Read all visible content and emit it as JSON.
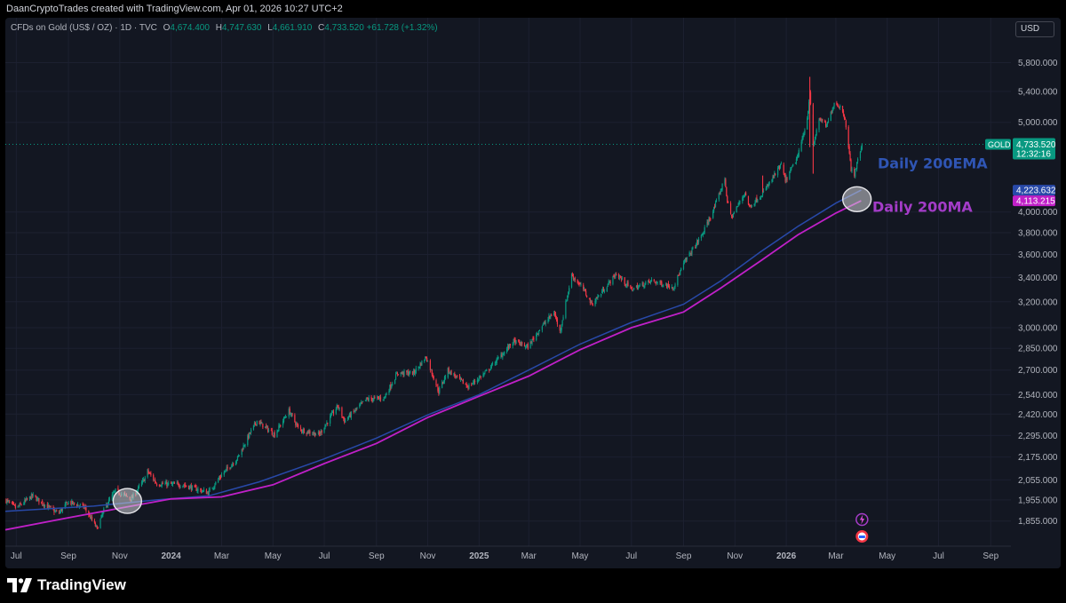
{
  "header": {
    "attribution": "DaanCryptoTrades created with TradingView.com, Apr 01, 2026 10:27 UTC+2"
  },
  "symbol": {
    "name": "CFDs on Gold (US$ / OZ) · 1D · TVC",
    "open_label": "O",
    "open": "4,674.400",
    "high_label": "H",
    "high": "4,747.630",
    "low_label": "L",
    "low": "4,661.910",
    "close_label": "C",
    "close": "4,733.520",
    "change": "+61.728 (+1.32%)"
  },
  "currency_button": "USD",
  "footer": {
    "brand": "TradingView"
  },
  "colors": {
    "background": "#131722",
    "up": "#089981",
    "down": "#f23645",
    "ema": "#2849a8",
    "ma": "#c020c8",
    "annotation_ema": "#2f55b4",
    "annotation_ma": "#a43cc8"
  },
  "chart_data": {
    "type": "candlestick",
    "interval": "1D",
    "y_scale": "log",
    "ylim": [
      1760,
      5800
    ],
    "x_range": [
      "2023-06-18",
      "2026-09-25"
    ],
    "y_ticks": [
      {
        "value": 5800,
        "label": "5,800.000"
      },
      {
        "value": 5400,
        "label": "5,400.000"
      },
      {
        "value": 5000,
        "label": "5,000.000"
      },
      {
        "value": 4000,
        "label": "4,000.000"
      },
      {
        "value": 3800,
        "label": "3,800.000"
      },
      {
        "value": 3600,
        "label": "3,600.000"
      },
      {
        "value": 3400,
        "label": "3,400.000"
      },
      {
        "value": 3200,
        "label": "3,200.000"
      },
      {
        "value": 3000,
        "label": "3,000.000"
      },
      {
        "value": 2850,
        "label": "2,850.000"
      },
      {
        "value": 2700,
        "label": "2,700.000"
      },
      {
        "value": 2540,
        "label": "2,540.000"
      },
      {
        "value": 2420,
        "label": "2,420.000"
      },
      {
        "value": 2295,
        "label": "2,295.000"
      },
      {
        "value": 2175,
        "label": "2,175.000"
      },
      {
        "value": 2055,
        "label": "2,055.000"
      },
      {
        "value": 1955,
        "label": "1,955.000"
      },
      {
        "value": 1855,
        "label": "1,855.000"
      }
    ],
    "x_ticks": [
      {
        "date": "2023-07-01",
        "label": "Jul",
        "bold": false
      },
      {
        "date": "2023-09-01",
        "label": "Sep",
        "bold": false
      },
      {
        "date": "2023-11-01",
        "label": "Nov",
        "bold": false
      },
      {
        "date": "2024-01-01",
        "label": "2024",
        "bold": true
      },
      {
        "date": "2024-03-01",
        "label": "Mar",
        "bold": false
      },
      {
        "date": "2024-05-01",
        "label": "May",
        "bold": false
      },
      {
        "date": "2024-07-01",
        "label": "Jul",
        "bold": false
      },
      {
        "date": "2024-09-01",
        "label": "Sep",
        "bold": false
      },
      {
        "date": "2024-11-01",
        "label": "Nov",
        "bold": false
      },
      {
        "date": "2025-01-01",
        "label": "2025",
        "bold": true
      },
      {
        "date": "2025-03-01",
        "label": "Mar",
        "bold": false
      },
      {
        "date": "2025-05-01",
        "label": "May",
        "bold": false
      },
      {
        "date": "2025-07-01",
        "label": "Jul",
        "bold": false
      },
      {
        "date": "2025-09-01",
        "label": "Sep",
        "bold": false
      },
      {
        "date": "2025-11-01",
        "label": "Nov",
        "bold": false
      },
      {
        "date": "2026-01-01",
        "label": "2026",
        "bold": true
      },
      {
        "date": "2026-03-01",
        "label": "Mar",
        "bold": false
      },
      {
        "date": "2026-05-01",
        "label": "May",
        "bold": false
      },
      {
        "date": "2026-07-01",
        "label": "Jul",
        "bold": false
      },
      {
        "date": "2026-09-01",
        "label": "Sep",
        "bold": false
      }
    ],
    "price_path": [
      [
        "2023-06-18",
        1955
      ],
      [
        "2023-07-01",
        1915
      ],
      [
        "2023-07-20",
        1975
      ],
      [
        "2023-08-10",
        1915
      ],
      [
        "2023-08-20",
        1890
      ],
      [
        "2023-09-01",
        1945
      ],
      [
        "2023-09-20",
        1920
      ],
      [
        "2023-10-05",
        1820
      ],
      [
        "2023-10-15",
        1925
      ],
      [
        "2023-10-27",
        2000
      ],
      [
        "2023-11-15",
        1960
      ],
      [
        "2023-12-01",
        2065
      ],
      [
        "2023-12-04",
        2100
      ],
      [
        "2023-12-15",
        2035
      ],
      [
        "2024-01-15",
        2030
      ],
      [
        "2024-02-14",
        1990
      ],
      [
        "2024-03-01",
        2080
      ],
      [
        "2024-03-20",
        2170
      ],
      [
        "2024-04-05",
        2320
      ],
      [
        "2024-04-12",
        2380
      ],
      [
        "2024-04-25",
        2330
      ],
      [
        "2024-05-03",
        2300
      ],
      [
        "2024-05-20",
        2440
      ],
      [
        "2024-06-01",
        2330
      ],
      [
        "2024-06-25",
        2300
      ],
      [
        "2024-07-17",
        2470
      ],
      [
        "2024-07-25",
        2380
      ],
      [
        "2024-08-20",
        2510
      ],
      [
        "2024-09-10",
        2520
      ],
      [
        "2024-09-26",
        2680
      ],
      [
        "2024-10-15",
        2680
      ],
      [
        "2024-10-30",
        2790
      ],
      [
        "2024-11-14",
        2560
      ],
      [
        "2024-11-25",
        2700
      ],
      [
        "2024-12-19",
        2590
      ],
      [
        "2025-01-10",
        2690
      ],
      [
        "2025-02-11",
        2900
      ],
      [
        "2025-02-28",
        2860
      ],
      [
        "2025-03-14",
        2990
      ],
      [
        "2025-03-31",
        3120
      ],
      [
        "2025-04-07",
        2970
      ],
      [
        "2025-04-21",
        3420
      ],
      [
        "2025-05-05",
        3300
      ],
      [
        "2025-05-15",
        3180
      ],
      [
        "2025-06-13",
        3430
      ],
      [
        "2025-07-01",
        3300
      ],
      [
        "2025-07-25",
        3370
      ],
      [
        "2025-08-20",
        3320
      ],
      [
        "2025-09-02",
        3530
      ],
      [
        "2025-09-23",
        3780
      ],
      [
        "2025-10-08",
        4050
      ],
      [
        "2025-10-20",
        4350
      ],
      [
        "2025-10-23",
        4100
      ],
      [
        "2025-10-28",
        3950
      ],
      [
        "2025-11-13",
        4200
      ],
      [
        "2025-11-18",
        4050
      ],
      [
        "2025-12-05",
        4200
      ],
      [
        "2025-12-26",
        4500
      ],
      [
        "2025-12-31",
        4320
      ],
      [
        "2026-01-15",
        4600
      ],
      [
        "2026-01-26",
        5050
      ],
      [
        "2026-01-29",
        5400
      ],
      [
        "2026-02-02",
        4700
      ],
      [
        "2026-02-09",
        5050
      ],
      [
        "2026-02-18",
        4950
      ],
      [
        "2026-02-27",
        5250
      ],
      [
        "2026-03-06",
        5200
      ],
      [
        "2026-03-12",
        5050
      ],
      [
        "2026-03-16",
        4700
      ],
      [
        "2026-03-19",
        4450
      ],
      [
        "2026-03-23",
        4400
      ],
      [
        "2026-03-27",
        4550
      ],
      [
        "2026-04-01",
        4733.52
      ]
    ],
    "series": [
      {
        "name": "Daily 200EMA",
        "last": 4223.632,
        "points": [
          [
            "2023-06-18",
            1900
          ],
          [
            "2023-10-01",
            1925
          ],
          [
            "2023-12-15",
            1955
          ],
          [
            "2024-02-15",
            1975
          ],
          [
            "2024-04-15",
            2045
          ],
          [
            "2024-07-01",
            2165
          ],
          [
            "2024-09-01",
            2280
          ],
          [
            "2024-11-01",
            2415
          ],
          [
            "2025-01-01",
            2540
          ],
          [
            "2025-03-01",
            2700
          ],
          [
            "2025-05-01",
            2880
          ],
          [
            "2025-07-01",
            3040
          ],
          [
            "2025-09-01",
            3180
          ],
          [
            "2025-10-15",
            3370
          ],
          [
            "2025-12-01",
            3620
          ],
          [
            "2026-01-15",
            3860
          ],
          [
            "2026-03-01",
            4090
          ],
          [
            "2026-03-31",
            4223.632
          ]
        ]
      },
      {
        "name": "Daily 200MA",
        "last": 4113.215,
        "points": [
          [
            "2023-06-18",
            1815
          ],
          [
            "2023-09-01",
            1870
          ],
          [
            "2023-11-01",
            1915
          ],
          [
            "2024-01-01",
            1960
          ],
          [
            "2024-03-01",
            1970
          ],
          [
            "2024-05-01",
            2030
          ],
          [
            "2024-07-01",
            2140
          ],
          [
            "2024-09-01",
            2250
          ],
          [
            "2024-11-01",
            2400
          ],
          [
            "2025-01-01",
            2530
          ],
          [
            "2025-03-01",
            2660
          ],
          [
            "2025-05-01",
            2840
          ],
          [
            "2025-07-01",
            3000
          ],
          [
            "2025-09-01",
            3120
          ],
          [
            "2025-10-15",
            3310
          ],
          [
            "2025-12-01",
            3540
          ],
          [
            "2026-01-15",
            3780
          ],
          [
            "2026-03-01",
            3990
          ],
          [
            "2026-03-31",
            4113.215
          ]
        ]
      }
    ],
    "annotations": [
      {
        "text": "Daily 200EMA",
        "color": "#2f55b4"
      },
      {
        "text": "Daily 200MA",
        "color": "#a43cc8"
      }
    ],
    "highlight_circles": [
      {
        "date": "2023-11-10",
        "value": 1950
      },
      {
        "date": "2026-03-26",
        "value": 4130
      }
    ],
    "last_price": {
      "symbol": "GOLD",
      "value": "4,733.520",
      "countdown": "12:32:16"
    },
    "last_date": "2026-04-01"
  }
}
